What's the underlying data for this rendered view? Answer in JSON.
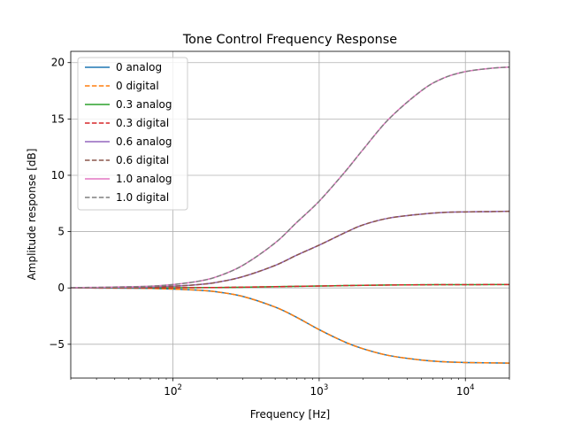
{
  "chart_data": {
    "type": "line",
    "title": "Tone Control Frequency Response",
    "xlabel": "Frequency [Hz]",
    "ylabel": "Amplitude response [dB]",
    "xscale": "log",
    "xlim": [
      20,
      20000
    ],
    "ylim": [
      -8,
      21
    ],
    "grid": true,
    "legend_position": "top-left",
    "x_ticks": [
      {
        "value": 100,
        "base": "10",
        "exp": "2"
      },
      {
        "value": 1000,
        "base": "10",
        "exp": "3"
      },
      {
        "value": 10000,
        "base": "10",
        "exp": "4"
      }
    ],
    "y_ticks": [
      {
        "value": -5,
        "label": "−5"
      },
      {
        "value": 0,
        "label": "0"
      },
      {
        "value": 5,
        "label": "5"
      },
      {
        "value": 10,
        "label": "10"
      },
      {
        "value": 15,
        "label": "15"
      },
      {
        "value": 20,
        "label": "20"
      }
    ],
    "x": [
      20,
      30,
      50,
      70,
      100,
      150,
      200,
      300,
      500,
      700,
      1000,
      1500,
      2000,
      3000,
      5000,
      7000,
      10000,
      15000,
      20000
    ],
    "series": [
      {
        "name": "0 analog",
        "color": "#1f77b4",
        "dash": "solid",
        "values": [
          0,
          -0.01,
          -0.02,
          -0.04,
          -0.1,
          -0.2,
          -0.35,
          -0.75,
          -1.7,
          -2.6,
          -3.7,
          -4.8,
          -5.4,
          -6.0,
          -6.4,
          -6.55,
          -6.62,
          -6.65,
          -6.67
        ]
      },
      {
        "name": "0 digital",
        "color": "#ff7f0e",
        "dash": "dashed",
        "values": [
          0,
          -0.01,
          -0.02,
          -0.04,
          -0.1,
          -0.2,
          -0.35,
          -0.75,
          -1.7,
          -2.6,
          -3.7,
          -4.8,
          -5.4,
          -6.0,
          -6.4,
          -6.55,
          -6.62,
          -6.65,
          -6.67
        ]
      },
      {
        "name": "0.3 analog",
        "color": "#2ca02c",
        "dash": "solid",
        "values": [
          0,
          0,
          0.01,
          0.01,
          0.02,
          0.03,
          0.04,
          0.07,
          0.11,
          0.14,
          0.17,
          0.21,
          0.23,
          0.26,
          0.28,
          0.29,
          0.29,
          0.3,
          0.3
        ]
      },
      {
        "name": "0.3 digital",
        "color": "#d62728",
        "dash": "dashed",
        "values": [
          0,
          0,
          0.01,
          0.01,
          0.02,
          0.03,
          0.04,
          0.07,
          0.11,
          0.14,
          0.17,
          0.21,
          0.23,
          0.26,
          0.28,
          0.29,
          0.29,
          0.3,
          0.3
        ]
      },
      {
        "name": "0.6 analog",
        "color": "#9467bd",
        "dash": "solid",
        "values": [
          0.02,
          0.03,
          0.05,
          0.08,
          0.15,
          0.3,
          0.5,
          1.0,
          2.0,
          2.9,
          3.8,
          4.9,
          5.6,
          6.2,
          6.55,
          6.7,
          6.75,
          6.78,
          6.8
        ]
      },
      {
        "name": "0.6 digital",
        "color": "#8c564b",
        "dash": "dashed",
        "values": [
          0.02,
          0.03,
          0.05,
          0.08,
          0.15,
          0.3,
          0.5,
          1.0,
          2.0,
          2.9,
          3.8,
          4.9,
          5.6,
          6.2,
          6.55,
          6.7,
          6.75,
          6.78,
          6.8
        ]
      },
      {
        "name": "1.0 analog",
        "color": "#e377c2",
        "dash": "solid",
        "values": [
          0.03,
          0.05,
          0.1,
          0.15,
          0.3,
          0.6,
          1.0,
          2.0,
          4.0,
          5.8,
          7.7,
          10.3,
          12.3,
          15.0,
          17.5,
          18.6,
          19.2,
          19.5,
          19.6
        ]
      },
      {
        "name": "1.0 digital",
        "color": "#7f7f7f",
        "dash": "dashed",
        "values": [
          0.03,
          0.05,
          0.1,
          0.15,
          0.3,
          0.6,
          1.0,
          2.0,
          4.0,
          5.8,
          7.7,
          10.3,
          12.3,
          15.0,
          17.5,
          18.6,
          19.2,
          19.5,
          19.6
        ]
      }
    ]
  }
}
